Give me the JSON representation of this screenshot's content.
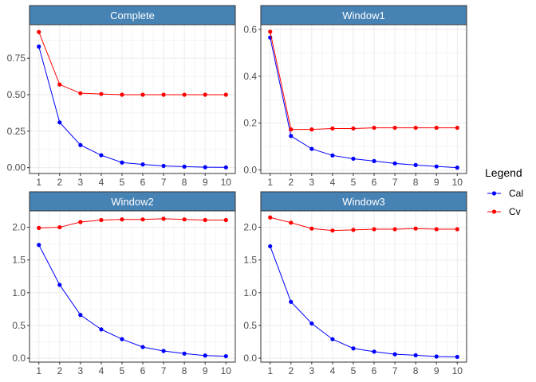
{
  "chart_data": {
    "type": "line",
    "facets": [
      {
        "title": "Complete",
        "x": [
          1,
          2,
          3,
          4,
          5,
          6,
          7,
          8,
          9,
          10
        ],
        "ylim": [
          -0.04,
          0.98
        ],
        "yticks": [
          0.0,
          0.25,
          0.5,
          0.75
        ],
        "ytick_labels": [
          "0.00",
          "0.25",
          "0.50",
          "0.75"
        ],
        "series": [
          {
            "name": "Cal",
            "values": [
              0.83,
              0.31,
              0.155,
              0.085,
              0.035,
              0.022,
              0.012,
              0.007,
              0.003,
              0.002
            ]
          },
          {
            "name": "Cv",
            "values": [
              0.93,
              0.57,
              0.51,
              0.505,
              0.5,
              0.5,
              0.5,
              0.5,
              0.5,
              0.5
            ]
          }
        ]
      },
      {
        "title": "Window1",
        "x": [
          1,
          2,
          3,
          4,
          5,
          6,
          7,
          8,
          9,
          10
        ],
        "ylim": [
          -0.015,
          0.62
        ],
        "yticks": [
          0.0,
          0.2,
          0.4,
          0.6
        ],
        "ytick_labels": [
          "0.0",
          "0.2",
          "0.4",
          "0.6"
        ],
        "series": [
          {
            "name": "Cal",
            "values": [
              0.565,
              0.145,
              0.09,
              0.062,
              0.048,
              0.038,
              0.028,
              0.021,
              0.015,
              0.01
            ]
          },
          {
            "name": "Cv",
            "values": [
              0.59,
              0.173,
              0.173,
              0.177,
              0.177,
              0.18,
              0.18,
              0.18,
              0.18,
              0.18
            ]
          }
        ]
      },
      {
        "title": "Window2",
        "x": [
          1,
          2,
          3,
          4,
          5,
          6,
          7,
          8,
          9,
          10
        ],
        "ylim": [
          -0.06,
          2.25
        ],
        "yticks": [
          0.0,
          0.5,
          1.0,
          1.5,
          2.0
        ],
        "ytick_labels": [
          "0.0",
          "0.5",
          "1.0",
          "1.5",
          "2.0"
        ],
        "series": [
          {
            "name": "Cal",
            "values": [
              1.73,
              1.12,
              0.66,
              0.44,
              0.29,
              0.17,
              0.11,
              0.07,
              0.04,
              0.03
            ]
          },
          {
            "name": "Cv",
            "values": [
              1.99,
              2.0,
              2.08,
              2.11,
              2.12,
              2.12,
              2.13,
              2.12,
              2.11,
              2.11
            ]
          }
        ]
      },
      {
        "title": "Window3",
        "x": [
          1,
          2,
          3,
          4,
          5,
          6,
          7,
          8,
          9,
          10
        ],
        "ylim": [
          -0.06,
          2.25
        ],
        "yticks": [
          0.0,
          0.5,
          1.0,
          1.5,
          2.0
        ],
        "ytick_labels": [
          "0.0",
          "0.5",
          "1.0",
          "1.5",
          "2.0"
        ],
        "series": [
          {
            "name": "Cal",
            "values": [
              1.71,
              0.86,
              0.53,
              0.29,
              0.15,
              0.1,
              0.06,
              0.045,
              0.025,
              0.02
            ]
          },
          {
            "name": "Cv",
            "values": [
              2.15,
              2.07,
              1.98,
              1.95,
              1.96,
              1.97,
              1.97,
              1.98,
              1.97,
              1.97
            ]
          }
        ]
      }
    ],
    "xticks": [
      1,
      2,
      3,
      4,
      5,
      6,
      7,
      8,
      9,
      10
    ],
    "xlabel": "",
    "ylabel": "",
    "grid": true,
    "legend": {
      "title": "Legend",
      "placement": "right",
      "entries": [
        {
          "label": "Cal",
          "color": "#0000ff"
        },
        {
          "label": "Cv",
          "color": "#ff0000"
        }
      ]
    },
    "colors": {
      "strip_fill": "#4682b4",
      "strip_text": "#ffffff",
      "panel_border": "#333333",
      "grid": "#ebebeb",
      "Cal": "#0000ff",
      "Cv": "#ff0000"
    }
  }
}
